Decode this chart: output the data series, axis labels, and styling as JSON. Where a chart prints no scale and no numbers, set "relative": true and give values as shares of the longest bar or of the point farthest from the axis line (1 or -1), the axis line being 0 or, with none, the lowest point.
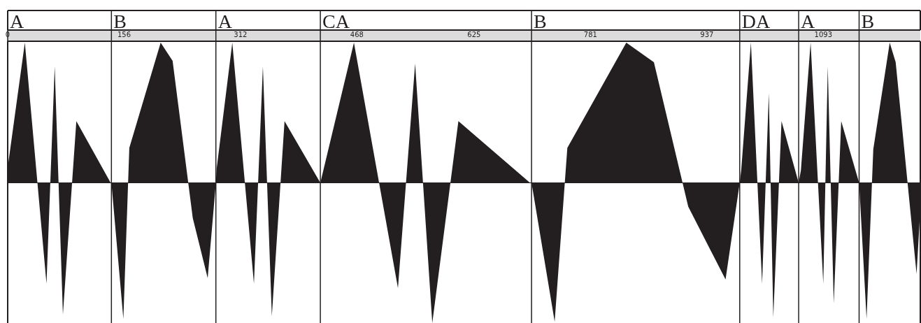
{
  "chart_data": {
    "type": "area",
    "relative": true,
    "color": "#231f20",
    "x": [
      0,
      23,
      52,
      63,
      74,
      92,
      138,
      139,
      155,
      163,
      205,
      221,
      248,
      268,
      279,
      280,
      301,
      330,
      342,
      354,
      371,
      419,
      464,
      523,
      546,
      569,
      604,
      700,
      702,
      733,
      750,
      829,
      866,
      912,
      962,
      981,
      983,
      996,
      1011,
      1020,
      1026,
      1037,
      1060,
      1063,
      1076,
      1093,
      1099,
      1107,
      1117,
      1141,
      1151,
      1160,
      1182,
      1190,
      1218,
      1223
    ],
    "values": [
      0.11,
      1.0,
      -0.72,
      0.83,
      -0.94,
      0.44,
      0,
      0,
      -0.97,
      0.25,
      1.0,
      0.87,
      -0.25,
      -0.68,
      0,
      0.1,
      1.0,
      -0.72,
      0.83,
      -0.95,
      0.44,
      0,
      1.0,
      -0.75,
      0.85,
      -1.0,
      0.44,
      0,
      0,
      -0.99,
      0.25,
      1.0,
      0.86,
      -0.17,
      -0.69,
      0,
      0.09,
      1.0,
      -0.72,
      0.64,
      -0.96,
      0.44,
      0,
      0.09,
      1.0,
      -0.72,
      0.83,
      -0.86,
      0.44,
      0,
      -0.97,
      0.24,
      1.0,
      0.86,
      -0.65,
      -0.19
    ],
    "xlim": [
      0,
      1223
    ],
    "xticks": [
      0,
      156,
      312,
      468,
      625,
      781,
      937,
      1093
    ],
    "ref_lines": [
      {
        "axis": "x",
        "value": 0,
        "label": "A"
      },
      {
        "axis": "x",
        "value": 139,
        "label": "B"
      },
      {
        "axis": "x",
        "value": 279,
        "label": "A"
      },
      {
        "axis": "x",
        "value": 419,
        "label": "CA"
      },
      {
        "axis": "x",
        "value": 702,
        "label": "B"
      },
      {
        "axis": "x",
        "value": 981,
        "label": "DA"
      },
      {
        "axis": "x",
        "value": 1060,
        "label": "A"
      },
      {
        "axis": "x",
        "value": 1141,
        "label": "B"
      }
    ]
  }
}
